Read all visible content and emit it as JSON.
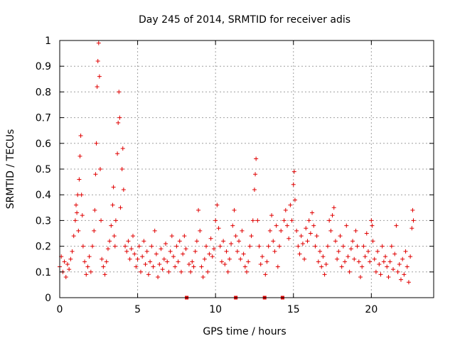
{
  "chart_data": {
    "type": "scatter",
    "title": "Day 245 of 2014, SRMTID for receiver adis",
    "xlabel": "GPS time / hours",
    "ylabel": "SRMTID / TECUs",
    "xlim": [
      0,
      24
    ],
    "ylim": [
      0,
      1
    ],
    "xticks": [
      0,
      5,
      10,
      15,
      20
    ],
    "yticks": [
      0,
      0.1,
      0.2,
      0.3,
      0.4,
      0.5,
      0.6,
      0.7,
      0.8,
      0.9,
      1
    ],
    "xtick_labels": [
      "0",
      "5",
      "10",
      "15",
      "20"
    ],
    "ytick_labels": [
      "0",
      "0.1",
      "0.2",
      "0.3",
      "0.4",
      "0.5",
      "0.6",
      "0.7",
      "0.8",
      "0.9",
      "1"
    ],
    "grid": true,
    "marker": "+",
    "series": [
      {
        "name": "SRMTID",
        "color": "#e00000",
        "points": [
          [
            0.0,
            0.12
          ],
          [
            0.1,
            0.16
          ],
          [
            0.2,
            0.1
          ],
          [
            0.3,
            0.14
          ],
          [
            0.4,
            0.08
          ],
          [
            0.5,
            0.13
          ],
          [
            0.6,
            0.11
          ],
          [
            0.7,
            0.15
          ],
          [
            0.8,
            0.18
          ],
          [
            0.9,
            0.24
          ],
          [
            1.0,
            0.3
          ],
          [
            1.05,
            0.36
          ],
          [
            1.1,
            0.33
          ],
          [
            1.15,
            0.4
          ],
          [
            1.2,
            0.26
          ],
          [
            1.25,
            0.46
          ],
          [
            1.3,
            0.55
          ],
          [
            1.35,
            0.63
          ],
          [
            1.4,
            0.4
          ],
          [
            1.45,
            0.32
          ],
          [
            1.5,
            0.2
          ],
          [
            1.6,
            0.14
          ],
          [
            1.7,
            0.09
          ],
          [
            1.8,
            0.12
          ],
          [
            1.9,
            0.16
          ],
          [
            2.0,
            0.1
          ],
          [
            2.1,
            0.2
          ],
          [
            2.2,
            0.26
          ],
          [
            2.25,
            0.34
          ],
          [
            2.3,
            0.48
          ],
          [
            2.35,
            0.6
          ],
          [
            2.4,
            0.82
          ],
          [
            2.45,
            0.92
          ],
          [
            2.5,
            0.99
          ],
          [
            2.55,
            0.86
          ],
          [
            2.6,
            0.5
          ],
          [
            2.65,
            0.3
          ],
          [
            2.7,
            0.15
          ],
          [
            2.8,
            0.12
          ],
          [
            2.9,
            0.09
          ],
          [
            3.0,
            0.14
          ],
          [
            3.1,
            0.19
          ],
          [
            3.2,
            0.22
          ],
          [
            3.3,
            0.28
          ],
          [
            3.4,
            0.36
          ],
          [
            3.45,
            0.43
          ],
          [
            3.5,
            0.24
          ],
          [
            3.55,
            0.2
          ],
          [
            3.6,
            0.3
          ],
          [
            3.7,
            0.56
          ],
          [
            3.75,
            0.68
          ],
          [
            3.8,
            0.8
          ],
          [
            3.85,
            0.7
          ],
          [
            3.9,
            0.35
          ],
          [
            4.0,
            0.5
          ],
          [
            4.05,
            0.58
          ],
          [
            4.1,
            0.42
          ],
          [
            4.2,
            0.2
          ],
          [
            4.3,
            0.18
          ],
          [
            4.4,
            0.22
          ],
          [
            4.5,
            0.15
          ],
          [
            4.6,
            0.19
          ],
          [
            4.7,
            0.24
          ],
          [
            4.8,
            0.17
          ],
          [
            4.9,
            0.12
          ],
          [
            5.0,
            0.15
          ],
          [
            5.1,
            0.2
          ],
          [
            5.2,
            0.1
          ],
          [
            5.3,
            0.16
          ],
          [
            5.4,
            0.22
          ],
          [
            5.5,
            0.13
          ],
          [
            5.6,
            0.18
          ],
          [
            5.7,
            0.09
          ],
          [
            5.8,
            0.14
          ],
          [
            5.9,
            0.2
          ],
          [
            6.0,
            0.12
          ],
          [
            6.1,
            0.26
          ],
          [
            6.2,
            0.17
          ],
          [
            6.3,
            0.08
          ],
          [
            6.4,
            0.13
          ],
          [
            6.5,
            0.19
          ],
          [
            6.6,
            0.11
          ],
          [
            6.7,
            0.15
          ],
          [
            6.8,
            0.21
          ],
          [
            6.9,
            0.14
          ],
          [
            7.0,
            0.1
          ],
          [
            7.1,
            0.18
          ],
          [
            7.2,
            0.24
          ],
          [
            7.3,
            0.16
          ],
          [
            7.4,
            0.12
          ],
          [
            7.5,
            0.2
          ],
          [
            7.6,
            0.14
          ],
          [
            7.7,
            0.22
          ],
          [
            7.8,
            0.1
          ],
          [
            7.9,
            0.17
          ],
          [
            8.0,
            0.24
          ],
          [
            8.1,
            0.19
          ],
          [
            8.3,
            0.13
          ],
          [
            8.4,
            0.1
          ],
          [
            8.5,
            0.14
          ],
          [
            8.6,
            0.12
          ],
          [
            8.7,
            0.18
          ],
          [
            8.8,
            0.22
          ],
          [
            8.9,
            0.34
          ],
          [
            9.0,
            0.26
          ],
          [
            9.1,
            0.12
          ],
          [
            9.2,
            0.08
          ],
          [
            9.3,
            0.15
          ],
          [
            9.4,
            0.2
          ],
          [
            9.5,
            0.1
          ],
          [
            9.6,
            0.17
          ],
          [
            9.7,
            0.23
          ],
          [
            9.8,
            0.16
          ],
          [
            9.9,
            0.19
          ],
          [
            10.0,
            0.3
          ],
          [
            10.1,
            0.36
          ],
          [
            10.2,
            0.27
          ],
          [
            10.3,
            0.2
          ],
          [
            10.4,
            0.14
          ],
          [
            10.5,
            0.22
          ],
          [
            10.6,
            0.13
          ],
          [
            10.7,
            0.18
          ],
          [
            10.8,
            0.1
          ],
          [
            10.9,
            0.15
          ],
          [
            11.0,
            0.21
          ],
          [
            11.1,
            0.28
          ],
          [
            11.2,
            0.34
          ],
          [
            11.3,
            0.24
          ],
          [
            11.4,
            0.18
          ],
          [
            11.5,
            0.22
          ],
          [
            11.6,
            0.15
          ],
          [
            11.7,
            0.26
          ],
          [
            11.8,
            0.17
          ],
          [
            11.9,
            0.12
          ],
          [
            12.0,
            0.1
          ],
          [
            12.1,
            0.14
          ],
          [
            12.2,
            0.2
          ],
          [
            12.3,
            0.24
          ],
          [
            12.4,
            0.3
          ],
          [
            12.5,
            0.42
          ],
          [
            12.55,
            0.48
          ],
          [
            12.6,
            0.54
          ],
          [
            12.7,
            0.3
          ],
          [
            12.8,
            0.2
          ],
          [
            12.9,
            0.13
          ],
          [
            13.0,
            0.16
          ],
          [
            13.2,
            0.09
          ],
          [
            13.3,
            0.14
          ],
          [
            13.4,
            0.2
          ],
          [
            13.5,
            0.26
          ],
          [
            13.6,
            0.32
          ],
          [
            13.7,
            0.22
          ],
          [
            13.8,
            0.18
          ],
          [
            13.9,
            0.28
          ],
          [
            14.0,
            0.12
          ],
          [
            14.1,
            0.2
          ],
          [
            14.2,
            0.26
          ],
          [
            14.4,
            0.3
          ],
          [
            14.5,
            0.34
          ],
          [
            14.6,
            0.28
          ],
          [
            14.7,
            0.23
          ],
          [
            14.8,
            0.36
          ],
          [
            14.9,
            0.3
          ],
          [
            15.0,
            0.44
          ],
          [
            15.05,
            0.49
          ],
          [
            15.1,
            0.38
          ],
          [
            15.2,
            0.26
          ],
          [
            15.3,
            0.2
          ],
          [
            15.4,
            0.17
          ],
          [
            15.5,
            0.24
          ],
          [
            15.6,
            0.21
          ],
          [
            15.7,
            0.15
          ],
          [
            15.8,
            0.27
          ],
          [
            15.9,
            0.22
          ],
          [
            16.0,
            0.3
          ],
          [
            16.1,
            0.25
          ],
          [
            16.2,
            0.33
          ],
          [
            16.3,
            0.28
          ],
          [
            16.4,
            0.2
          ],
          [
            16.5,
            0.24
          ],
          [
            16.6,
            0.14
          ],
          [
            16.7,
            0.18
          ],
          [
            16.8,
            0.12
          ],
          [
            16.9,
            0.16
          ],
          [
            17.0,
            0.09
          ],
          [
            17.1,
            0.13
          ],
          [
            17.2,
            0.2
          ],
          [
            17.3,
            0.3
          ],
          [
            17.4,
            0.26
          ],
          [
            17.5,
            0.32
          ],
          [
            17.6,
            0.35
          ],
          [
            17.7,
            0.22
          ],
          [
            17.8,
            0.15
          ],
          [
            17.9,
            0.18
          ],
          [
            18.0,
            0.24
          ],
          [
            18.1,
            0.12
          ],
          [
            18.2,
            0.2
          ],
          [
            18.3,
            0.14
          ],
          [
            18.4,
            0.28
          ],
          [
            18.5,
            0.16
          ],
          [
            18.6,
            0.1
          ],
          [
            18.7,
            0.19
          ],
          [
            18.8,
            0.22
          ],
          [
            18.9,
            0.15
          ],
          [
            19.0,
            0.26
          ],
          [
            19.1,
            0.2
          ],
          [
            19.2,
            0.14
          ],
          [
            19.3,
            0.08
          ],
          [
            19.4,
            0.12
          ],
          [
            19.5,
            0.2
          ],
          [
            19.6,
            0.16
          ],
          [
            19.7,
            0.25
          ],
          [
            19.8,
            0.18
          ],
          [
            19.9,
            0.14
          ],
          [
            20.0,
            0.3
          ],
          [
            20.05,
            0.28
          ],
          [
            20.1,
            0.22
          ],
          [
            20.2,
            0.15
          ],
          [
            20.3,
            0.1
          ],
          [
            20.4,
            0.18
          ],
          [
            20.5,
            0.13
          ],
          [
            20.6,
            0.09
          ],
          [
            20.7,
            0.2
          ],
          [
            20.8,
            0.14
          ],
          [
            20.9,
            0.16
          ],
          [
            21.0,
            0.12
          ],
          [
            21.1,
            0.08
          ],
          [
            21.2,
            0.14
          ],
          [
            21.3,
            0.2
          ],
          [
            21.4,
            0.11
          ],
          [
            21.5,
            0.17
          ],
          [
            21.6,
            0.28
          ],
          [
            21.7,
            0.1
          ],
          [
            21.8,
            0.13
          ],
          [
            21.9,
            0.07
          ],
          [
            22.0,
            0.15
          ],
          [
            22.1,
            0.09
          ],
          [
            22.2,
            0.18
          ],
          [
            22.3,
            0.12
          ],
          [
            22.4,
            0.06
          ],
          [
            22.5,
            0.16
          ],
          [
            22.6,
            0.27
          ],
          [
            22.65,
            0.34
          ],
          [
            22.7,
            0.3
          ]
        ]
      }
    ],
    "gap_markers": [
      8.15,
      11.3,
      13.15,
      14.3
    ]
  }
}
